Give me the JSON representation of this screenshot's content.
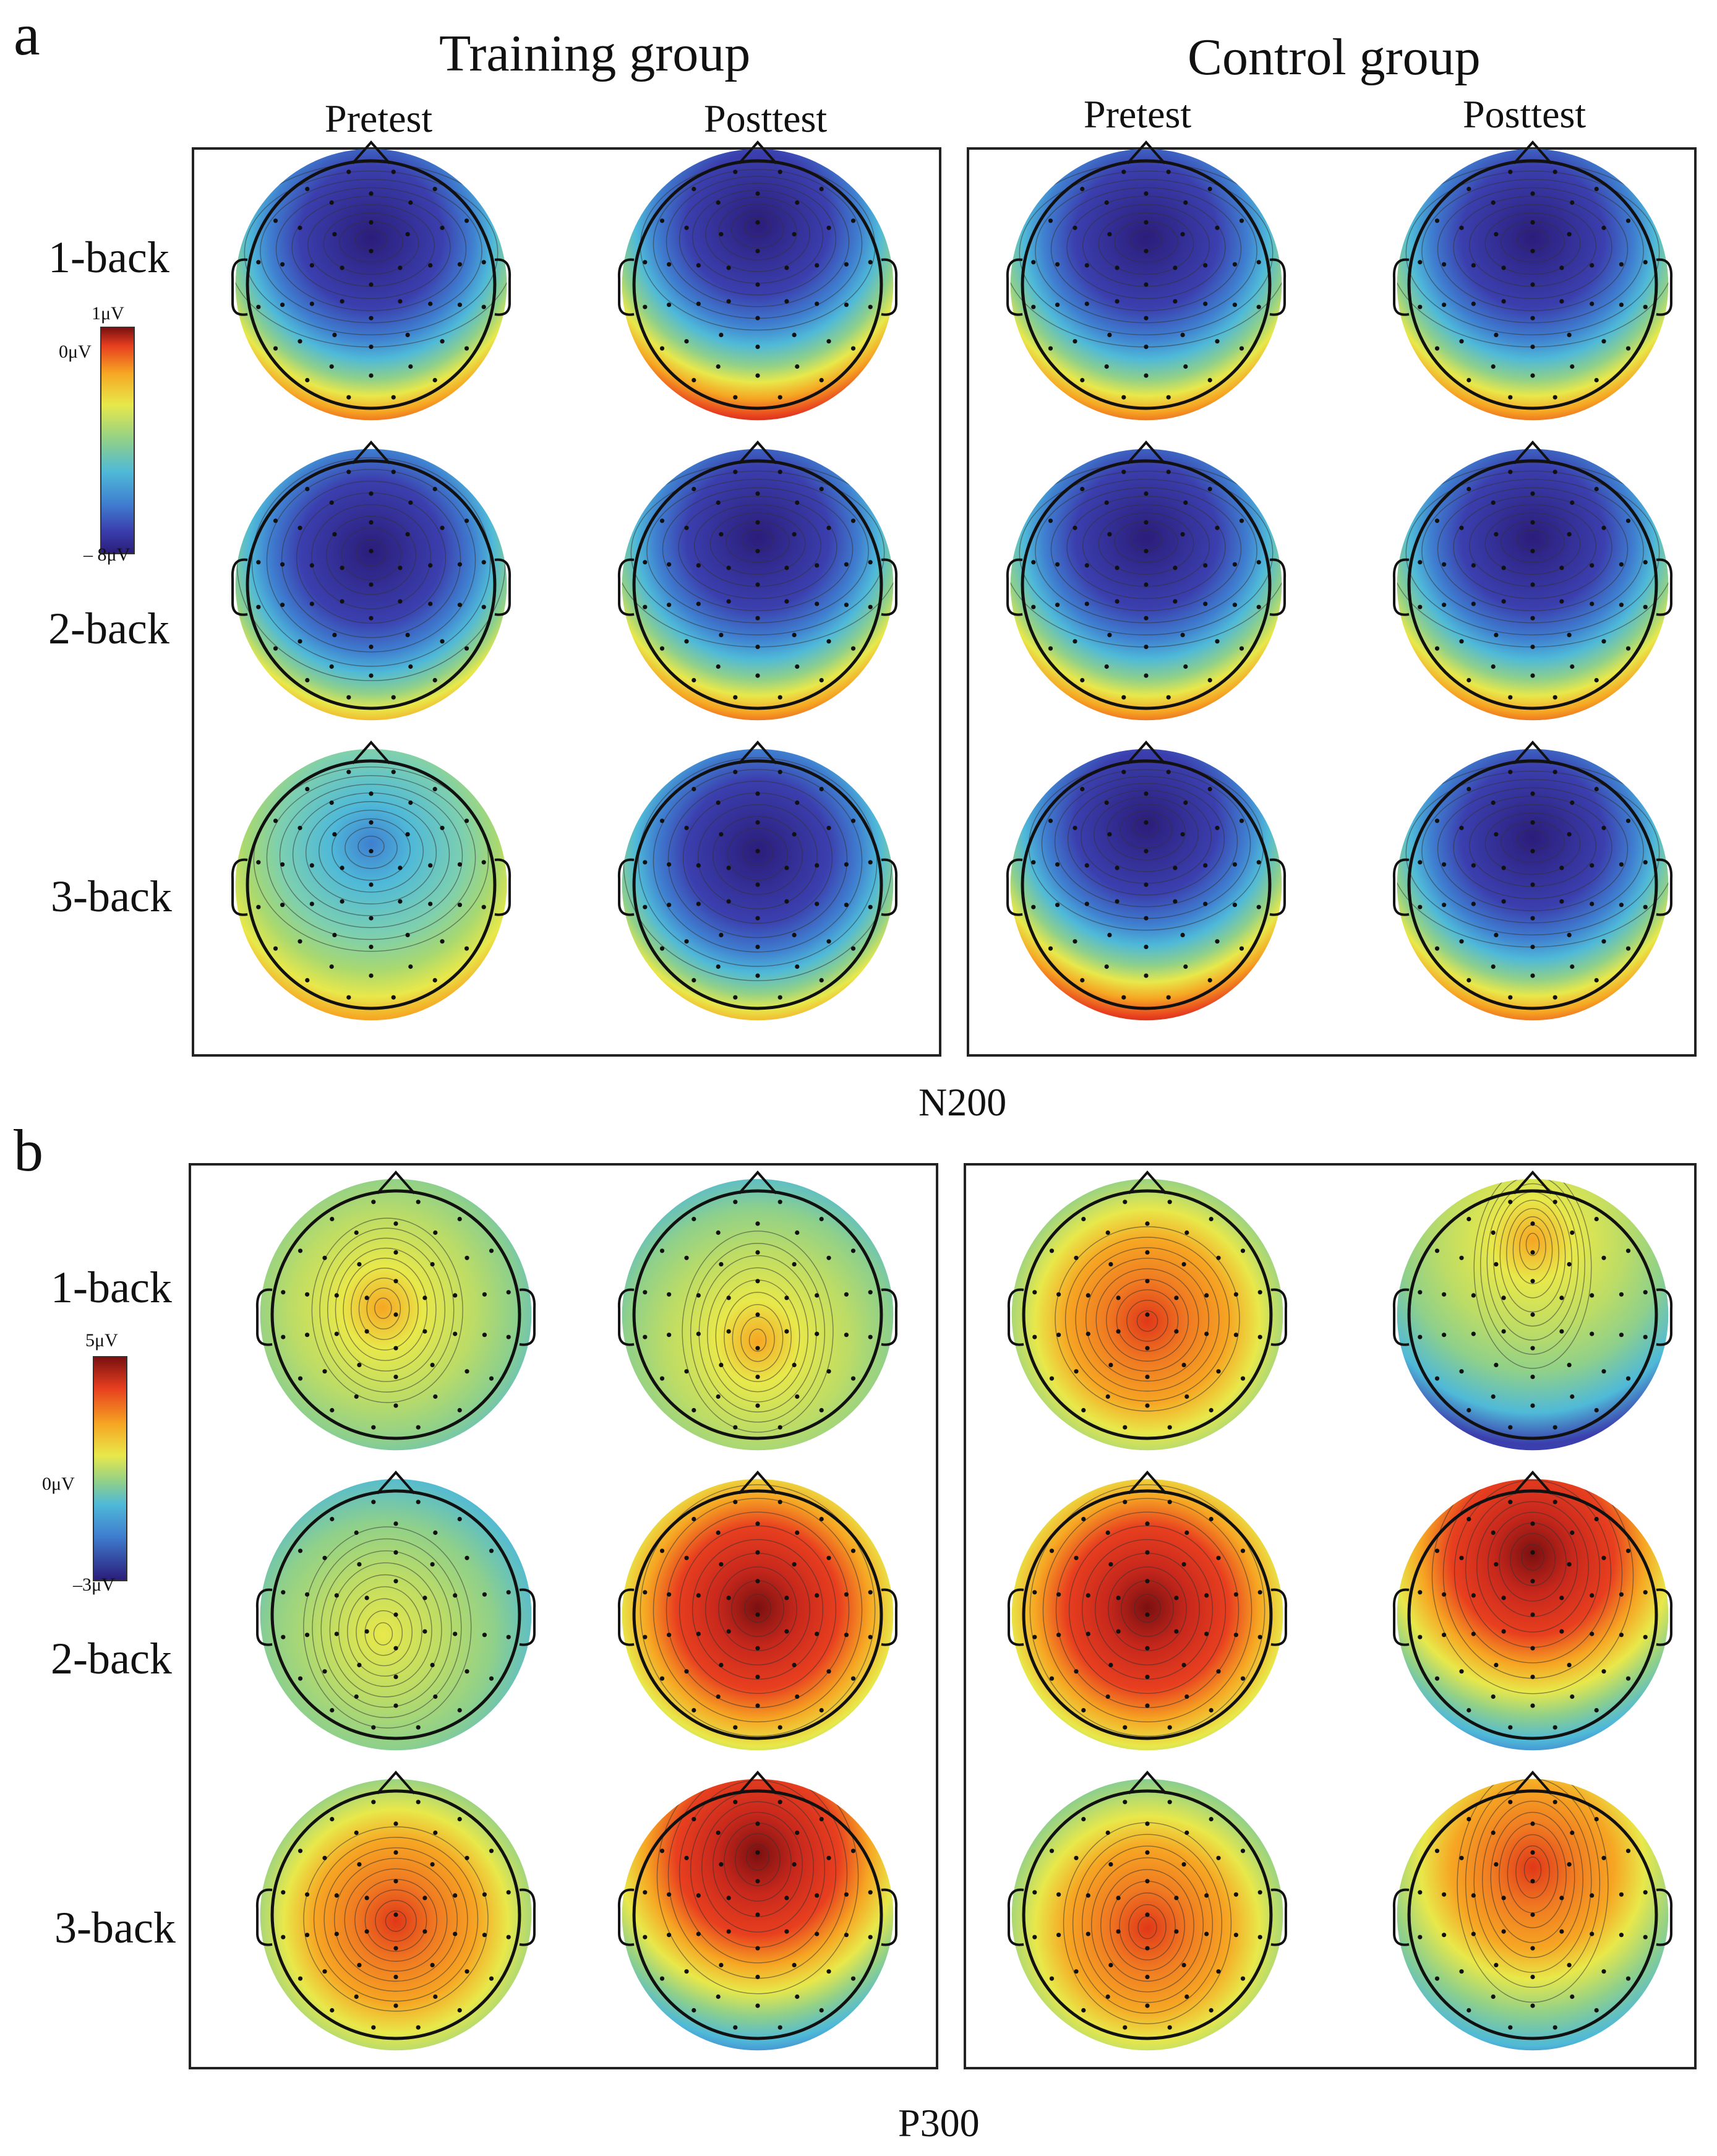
{
  "panel_a": {
    "letter": "a",
    "component": "N200",
    "groups": [
      {
        "title": "Training group",
        "columns": [
          "Pretest",
          "Posttest"
        ]
      },
      {
        "title": "Control group",
        "columns": [
          "Pretest",
          "Posttest"
        ]
      }
    ],
    "rows": [
      "1-back",
      "2-back",
      "3-back"
    ],
    "colorbar": {
      "max_label": "1μV",
      "zero_label": "0μV",
      "min_label": "– 8μV",
      "min": -8,
      "max": 1
    },
    "maps": [
      [
        "n200-neg-frontal",
        "n200-neg-frontal-strong",
        "n200-neg-frontal",
        "n200-neg-frontal"
      ],
      [
        "n200-neg-deep",
        "n200-neg-frontal",
        "n200-neg-frontal",
        "n200-neg-frontal"
      ],
      [
        "n200-weak",
        "n200-neg-deep",
        "n200-neg-frontal-strong",
        "n200-neg-frontal"
      ]
    ]
  },
  "panel_b": {
    "letter": "b",
    "component": "P300",
    "rows": [
      "1-back",
      "2-back",
      "3-back"
    ],
    "colorbar": {
      "max_label": "5μV",
      "zero_label": "0μV",
      "min_label": "–3μV",
      "min": -3,
      "max": 5
    },
    "maps": [
      [
        "p300-weak-center",
        "p300-weak-posterior",
        "p300-mid-center",
        "p300-weak-front"
      ],
      [
        "p300-flat",
        "p300-strong-center",
        "p300-strong-center",
        "p300-strong-front"
      ],
      [
        "p300-mid-center",
        "p300-strong-front",
        "p300-mid-posterior",
        "p300-mid-front"
      ]
    ]
  },
  "colors": {
    "n200_scale": [
      "#2b1d7a",
      "#3b3fae",
      "#3f7fd0",
      "#4fb9d8",
      "#8fd08a",
      "#e8e84a",
      "#f6a623",
      "#e83f1f",
      "#7a1010"
    ],
    "p300_scale": [
      "#2b1d7a",
      "#3f7fd0",
      "#4fb9d8",
      "#8fd08a",
      "#e8e84a",
      "#f6a623",
      "#e83f1f",
      "#7a1010"
    ]
  }
}
